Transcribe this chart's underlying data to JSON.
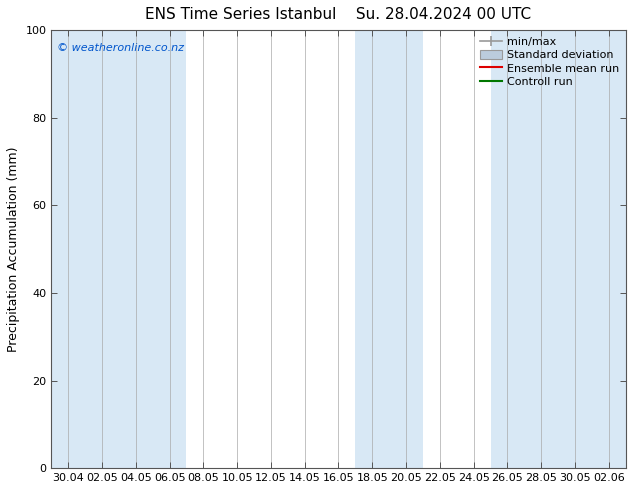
{
  "title1": "ENS Time Series Istanbul",
  "title2": "Su. 28.04.2024 00 UTC",
  "ylabel": "Precipitation Accumulation (mm)",
  "ylim": [
    0,
    100
  ],
  "yticks": [
    0,
    20,
    40,
    60,
    80,
    100
  ],
  "xtick_labels": [
    "30.04",
    "02.05",
    "04.05",
    "06.05",
    "08.05",
    "10.05",
    "12.05",
    "14.05",
    "16.05",
    "18.05",
    "20.05",
    "22.05",
    "24.05",
    "26.05",
    "28.05",
    "30.05",
    "02.06"
  ],
  "copyright_text": "© weatheronline.co.nz",
  "copyright_color": "#0055cc",
  "bg_color": "#ffffff",
  "plot_bg_color": "#ffffff",
  "stripe_color": "#d8e8f5",
  "legend_labels": [
    "min/max",
    "Standard deviation",
    "Ensemble mean run",
    "Controll run"
  ],
  "minmax_color": "#999999",
  "std_color": "#bbccdd",
  "ensemble_color": "#dd0000",
  "control_color": "#007700",
  "title_fontsize": 11,
  "ylabel_fontsize": 9,
  "tick_fontsize": 8,
  "legend_fontsize": 8,
  "stripe_indices": [
    0,
    2,
    5,
    7,
    9,
    13,
    15
  ]
}
